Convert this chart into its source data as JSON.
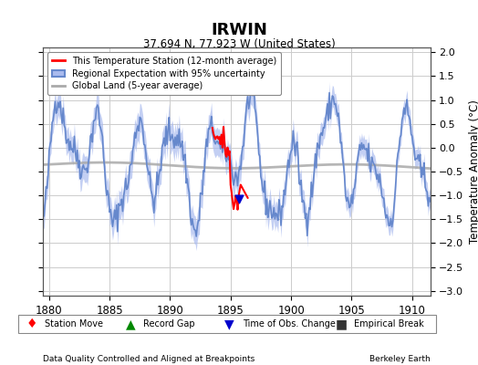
{
  "title": "IRWIN",
  "subtitle": "37.694 N, 77.923 W (United States)",
  "xlabel_left": "Data Quality Controlled and Aligned at Breakpoints",
  "xlabel_right": "Berkeley Earth",
  "ylabel": "Temperature Anomaly (°C)",
  "xlim": [
    1879.5,
    1911.5
  ],
  "ylim": [
    -3.1,
    2.1
  ],
  "yticks": [
    -3,
    -2.5,
    -2,
    -1.5,
    -1,
    -0.5,
    0,
    0.5,
    1,
    1.5,
    2
  ],
  "xticks": [
    1880,
    1885,
    1890,
    1895,
    1900,
    1905,
    1910
  ],
  "regional_color": "#6688cc",
  "regional_fill_color": "#aabbee",
  "station_color": "#ff0000",
  "global_color": "#aaaaaa",
  "bg_color": "#ffffff",
  "plot_bg_color": "#ffffff",
  "grid_color": "#cccccc",
  "time_obs_marker_color": "#0000cc",
  "station_move_color": "#ff0000",
  "record_gap_color": "#008800",
  "empirical_break_color": "#333333",
  "seed": 42
}
